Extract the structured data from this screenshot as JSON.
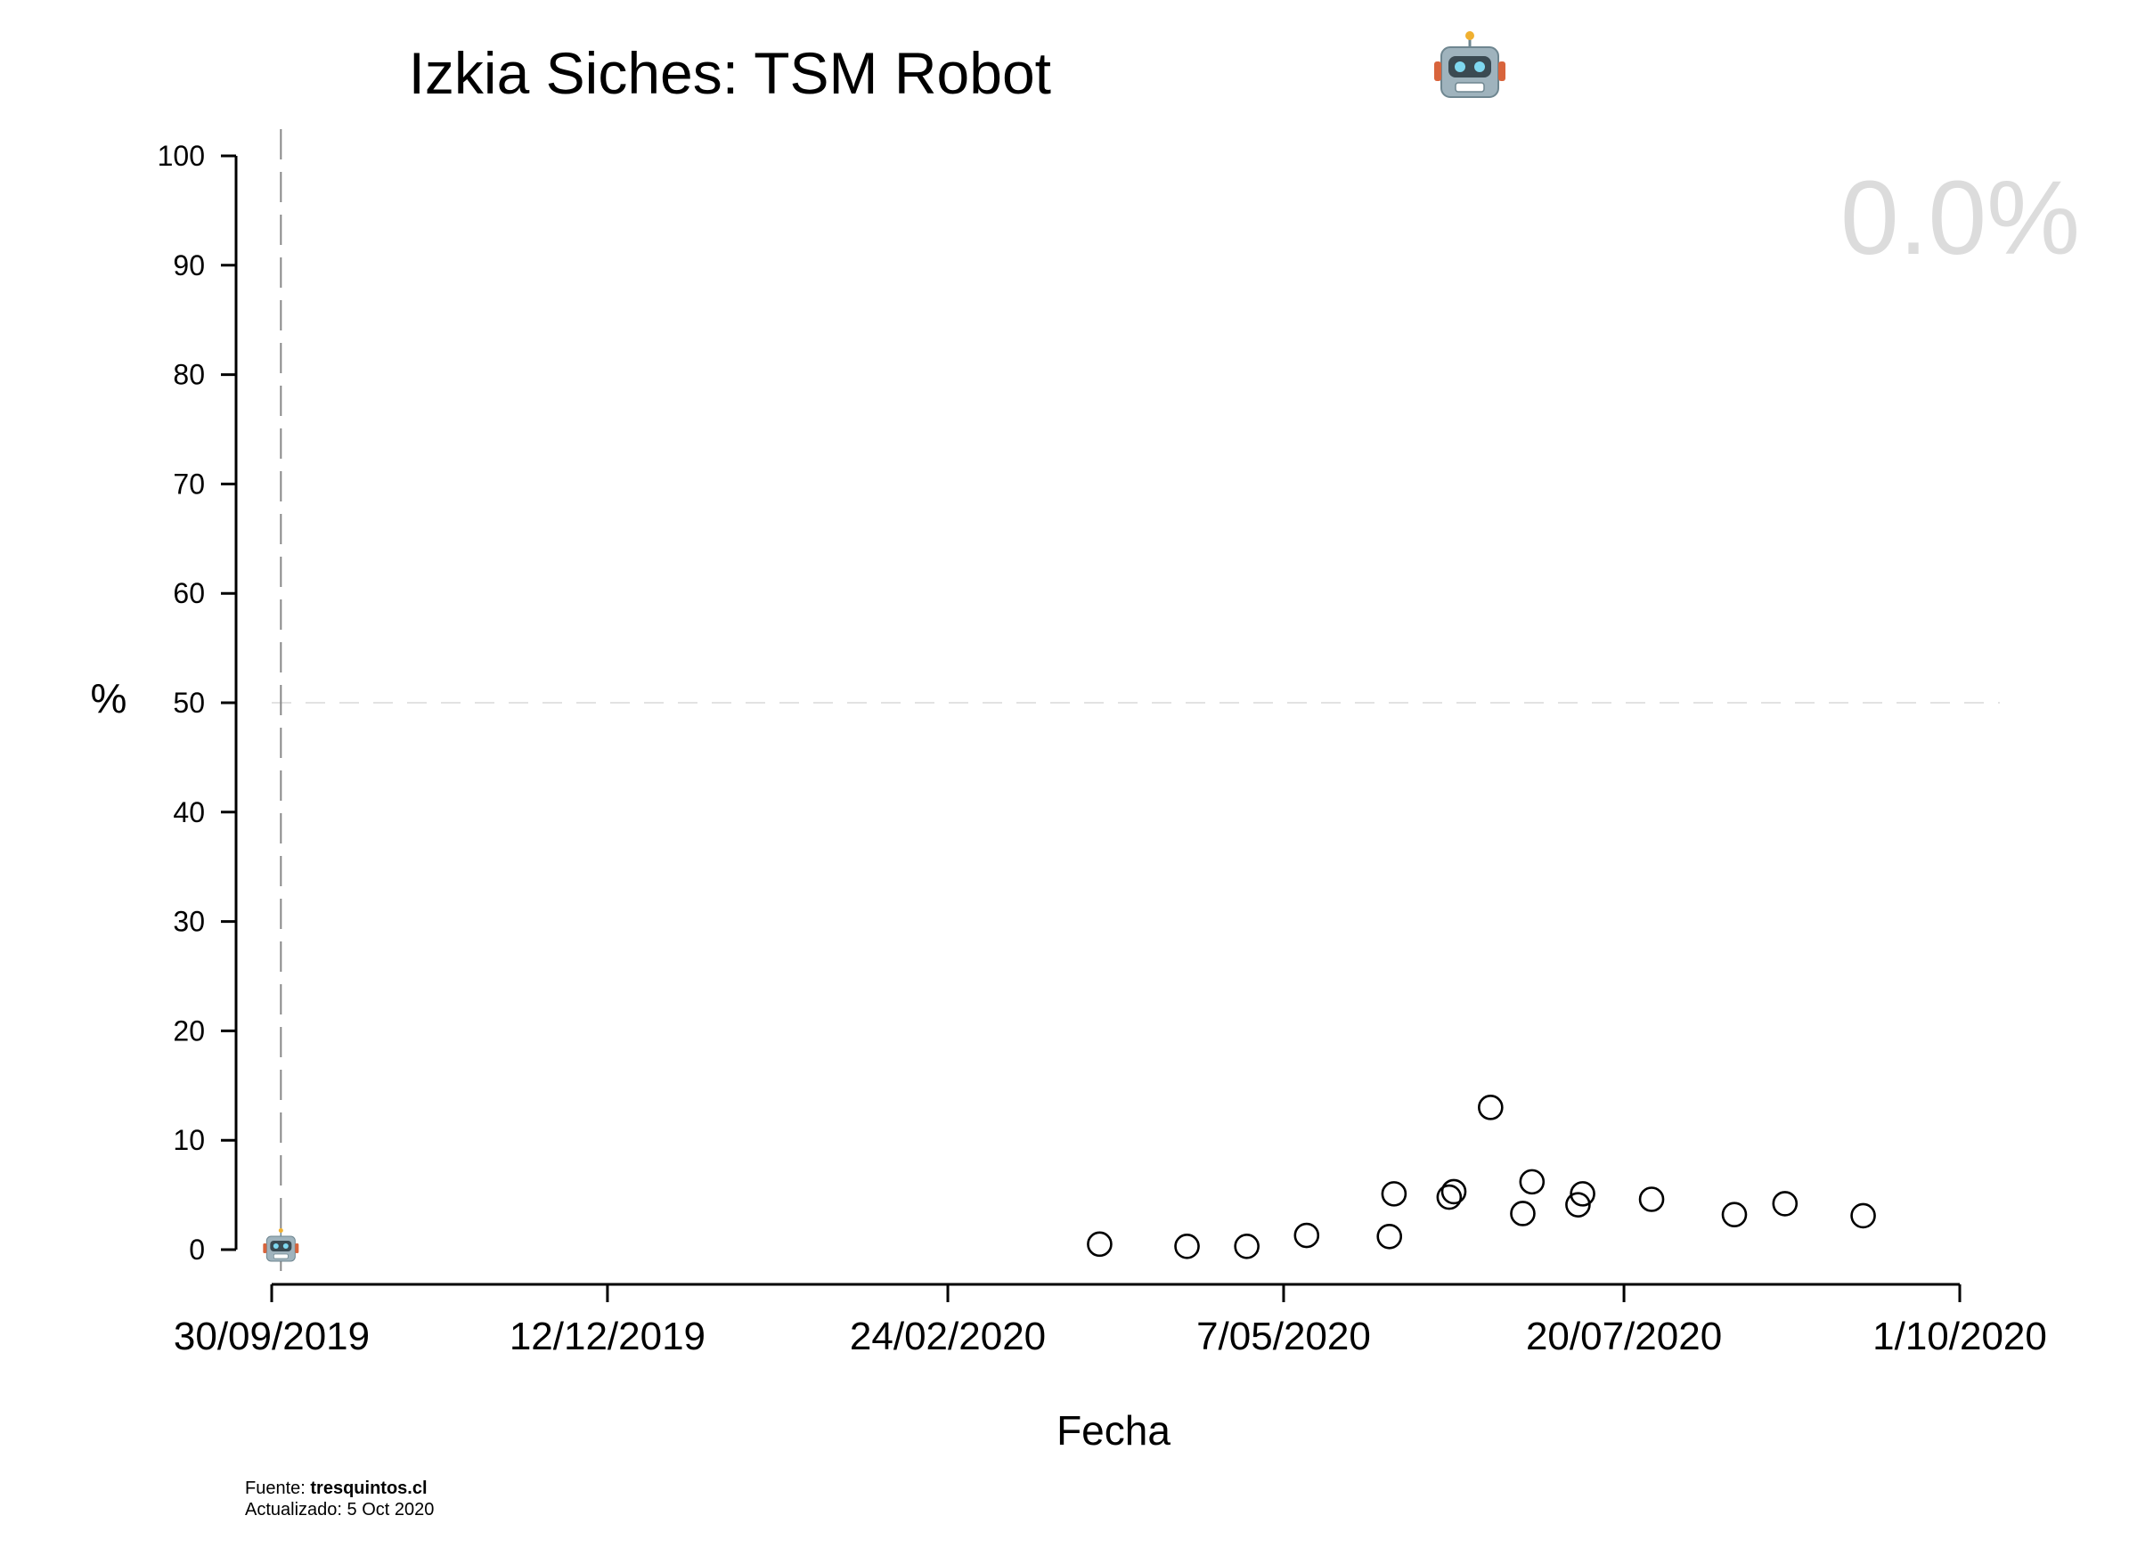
{
  "chart_data": {
    "type": "scatter",
    "title": "Izkia Siches: TSM Robot",
    "title_icon": "robot-face-icon",
    "xlabel": "Fecha",
    "ylabel": "%",
    "ylim": [
      0,
      100
    ],
    "yticks": [
      0,
      10,
      20,
      30,
      40,
      50,
      60,
      70,
      80,
      90,
      100
    ],
    "xlim": [
      "2019-09-30",
      "2020-10-01"
    ],
    "xticks": [
      {
        "date": "2019-09-30",
        "label": "30/09/2019"
      },
      {
        "date": "2019-12-12",
        "label": "12/12/2019"
      },
      {
        "date": "2020-02-24",
        "label": "24/02/2020"
      },
      {
        "date": "2020-05-07",
        "label": "7/05/2020"
      },
      {
        "date": "2020-07-20",
        "label": "20/07/2020"
      },
      {
        "date": "2020-10-01",
        "label": "1/10/2020"
      }
    ],
    "reference_line_y": 50,
    "reference_line_x": "2019-10-02",
    "marker_at_reference": {
      "date": "2019-10-02",
      "value": 0,
      "icon": "robot-face-icon"
    },
    "points": [
      {
        "x": "2020-03-28",
        "y": 0.5
      },
      {
        "x": "2020-04-16",
        "y": 0.3
      },
      {
        "x": "2020-04-29",
        "y": 0.3
      },
      {
        "x": "2020-05-12",
        "y": 1.3
      },
      {
        "x": "2020-05-30",
        "y": 1.2
      },
      {
        "x": "2020-05-31",
        "y": 5.1
      },
      {
        "x": "2020-06-12",
        "y": 4.8
      },
      {
        "x": "2020-06-13",
        "y": 5.3
      },
      {
        "x": "2020-06-21",
        "y": 13.0
      },
      {
        "x": "2020-06-28",
        "y": 3.3
      },
      {
        "x": "2020-06-30",
        "y": 6.2
      },
      {
        "x": "2020-07-10",
        "y": 4.1
      },
      {
        "x": "2020-07-11",
        "y": 5.1
      },
      {
        "x": "2020-07-26",
        "y": 4.6
      },
      {
        "x": "2020-08-13",
        "y": 3.2
      },
      {
        "x": "2020-08-24",
        "y": 4.2
      },
      {
        "x": "2020-09-10",
        "y": 3.1
      }
    ],
    "grid": false,
    "colors": {
      "markers": "#000000",
      "reference": "#999999",
      "big_value": "#dcdcdc"
    }
  },
  "big_value": "0.0%",
  "footer": {
    "source_prefix": "Fuente: ",
    "source_site": "tresquintos.cl",
    "updated": "Actualizado: 5 Oct 2020"
  }
}
